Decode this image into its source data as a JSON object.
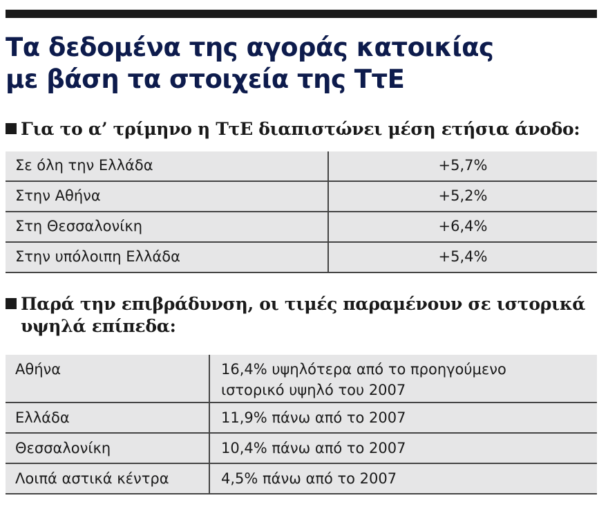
{
  "header": {
    "title_lines": [
      "Τα δεδομένα της αγοράς κατοικίας",
      "με βάση τα στοιχεία της ΤτΕ"
    ]
  },
  "sections": [
    {
      "heading": "Για το α’ τρίμηνο η ΤτΕ διαπιστώνει μέση ετήσια άνοδο:",
      "rows": [
        [
          "Σε όλη την Ελλάδα",
          "+5,7%"
        ],
        [
          "Στην Αθήνα",
          "+5,2%"
        ],
        [
          "Στη Θεσσαλονίκη",
          "+6,4%"
        ],
        [
          "Στην υπόλοιπη Ελλάδα",
          "+5,4%"
        ]
      ]
    },
    {
      "heading_lines": [
        "Παρά την επιβράδυνση, οι τιμές παραμένουν σε ιστορικά",
        "υψηλά επίπεδα:"
      ],
      "rows": [
        [
          "Αθήνα",
          "16,4% υψηλότερα από το προηγούμενο ιστορικό υψηλό του 2007"
        ],
        [
          "Ελλάδα",
          "11,9% πάνω από το 2007"
        ],
        [
          "Θεσσαλονίκη",
          "10,4% πάνω από το 2007"
        ],
        [
          "Λοιπά αστικά κέντρα",
          "4,5% πάνω από το 2007"
        ]
      ]
    }
  ]
}
